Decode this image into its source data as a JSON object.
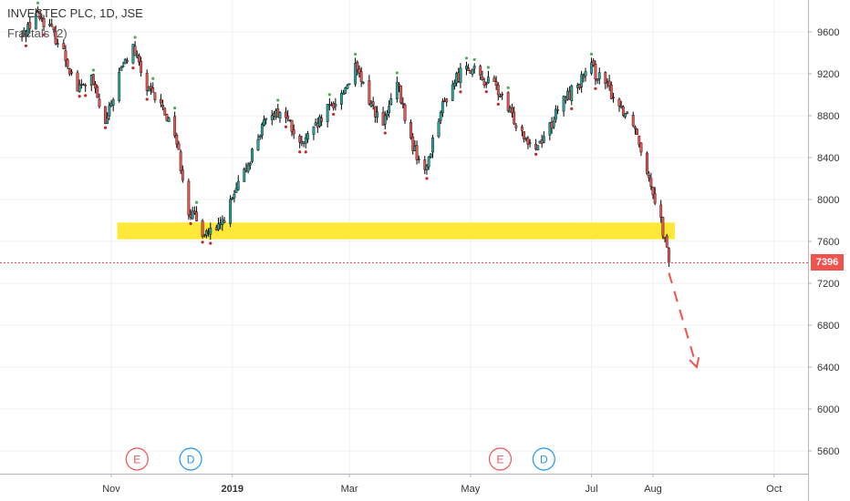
{
  "header": {
    "title": "INVESTEC PLC, 1D, JSE",
    "indicator": "Fractals (2)"
  },
  "last_price": "7396",
  "colors": {
    "up": "#26a69a",
    "down": "#ef5350",
    "wick": "#000000",
    "grid": "#eef0f3",
    "support_zone": "#ffe838",
    "fractal_up": "#4caf50",
    "fractal_down": "#c62828",
    "event_earnings": "#ef5350",
    "event_dividend": "#2196f3"
  },
  "events": [
    {
      "type": "earnings",
      "label": "E",
      "date": "2018-11-14"
    },
    {
      "type": "dividend",
      "label": "D",
      "date": "2018-12-11"
    },
    {
      "type": "earnings",
      "label": "E",
      "date": "2019-05-16"
    },
    {
      "type": "dividend",
      "label": "D",
      "date": "2019-06-07"
    }
  ],
  "chart_data": {
    "type": "candlestick",
    "title": "INVESTEC PLC, 1D, JSE",
    "x_ticks": [
      "Nov",
      "2019",
      "Mar",
      "May",
      "Jul",
      "Aug",
      "Oct"
    ],
    "y_ticks": [
      5600,
      6000,
      6400,
      6800,
      7200,
      7600,
      8000,
      8400,
      8800,
      9200,
      9600
    ],
    "ylim": [
      5300,
      9900
    ],
    "x_range": [
      "2018-09-17",
      "2019-10-25"
    ],
    "last_price": 7396,
    "support_zone": {
      "from": "2018-11-04",
      "to": "2019-08-12",
      "low": 7620,
      "high": 7780
    },
    "projection_arrow": {
      "from_date": "2019-08-09",
      "from_price": 7300,
      "to_date": "2019-08-23",
      "to_price": 6400
    },
    "price_path": [
      [
        "2018-09-17",
        9550
      ],
      [
        "2018-09-24",
        9780
      ],
      [
        "2018-10-01",
        9650
      ],
      [
        "2018-10-08",
        9400
      ],
      [
        "2018-10-15",
        9050
      ],
      [
        "2018-10-22",
        9150
      ],
      [
        "2018-10-29",
        8700
      ],
      [
        "2018-11-05",
        9200
      ],
      [
        "2018-11-12",
        9450
      ],
      [
        "2018-11-19",
        9050
      ],
      [
        "2018-11-26",
        8900
      ],
      [
        "2018-12-03",
        8650
      ],
      [
        "2018-12-10",
        7900
      ],
      [
        "2018-12-17",
        7700
      ],
      [
        "2018-12-24",
        7680
      ],
      [
        "2018-12-31",
        7950
      ],
      [
        "2019-01-07",
        8250
      ],
      [
        "2019-01-14",
        8600
      ],
      [
        "2019-01-21",
        8850
      ],
      [
        "2019-01-28",
        8800
      ],
      [
        "2019-02-04",
        8500
      ],
      [
        "2019-02-11",
        8650
      ],
      [
        "2019-02-18",
        8850
      ],
      [
        "2019-02-25",
        9000
      ],
      [
        "2019-03-04",
        9250
      ],
      [
        "2019-03-11",
        8950
      ],
      [
        "2019-03-18",
        8700
      ],
      [
        "2019-03-25",
        9100
      ],
      [
        "2019-04-01",
        8550
      ],
      [
        "2019-04-08",
        8250
      ],
      [
        "2019-04-15",
        8800
      ],
      [
        "2019-04-22",
        9100
      ],
      [
        "2019-04-29",
        9300
      ],
      [
        "2019-05-06",
        9150
      ],
      [
        "2019-05-13",
        9100
      ],
      [
        "2019-05-20",
        8850
      ],
      [
        "2019-05-27",
        8650
      ],
      [
        "2019-06-03",
        8500
      ],
      [
        "2019-06-10",
        8700
      ],
      [
        "2019-06-17",
        8950
      ],
      [
        "2019-06-24",
        9100
      ],
      [
        "2019-07-01",
        9250
      ],
      [
        "2019-07-08",
        9100
      ],
      [
        "2019-07-15",
        8900
      ],
      [
        "2019-07-22",
        8750
      ],
      [
        "2019-07-29",
        8300
      ],
      [
        "2019-08-05",
        7800
      ],
      [
        "2019-08-09",
        7396
      ]
    ]
  }
}
